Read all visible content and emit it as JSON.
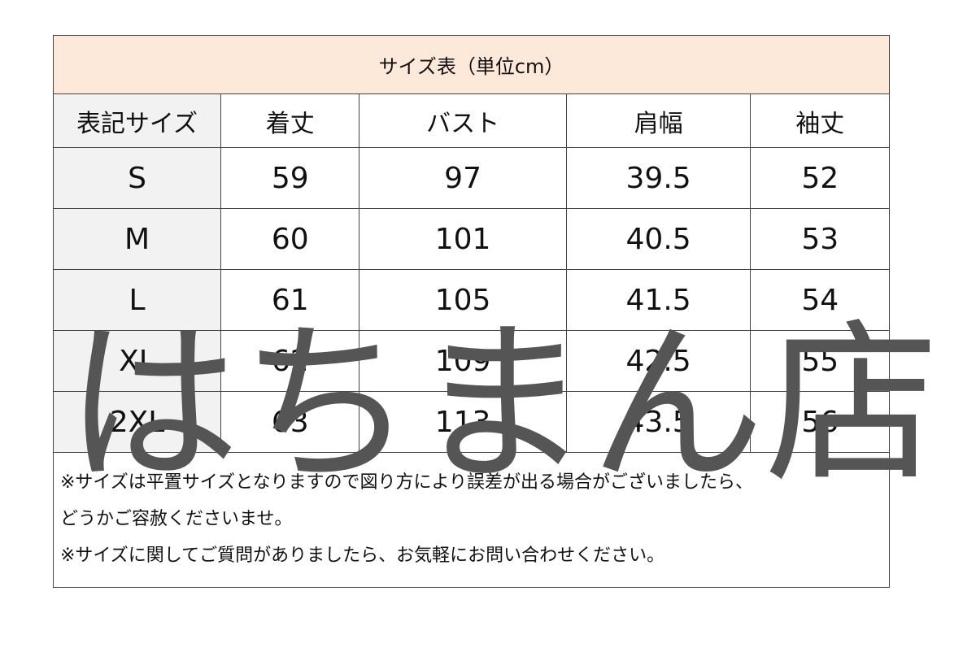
{
  "title": "サイズ表（単位cm）",
  "headers": [
    "表記サイズ",
    "着丈",
    "バスト",
    "肩幅",
    "袖丈"
  ],
  "rows": [
    [
      "S",
      "59",
      "97",
      "39.5",
      "52"
    ],
    [
      "M",
      "60",
      "101",
      "40.5",
      "53"
    ],
    [
      "L",
      "61",
      "105",
      "41.5",
      "54"
    ],
    [
      "XL",
      "62",
      "109",
      "42.5",
      "55"
    ],
    [
      "2XL",
      "63",
      "113",
      "43.5",
      "56"
    ]
  ],
  "notes": [
    "※サイズは平置サイズとなりますので図り方により誤差が出る場合がございましたら、",
    "どうかご容赦くださいませ。",
    "※サイズに関してご質問がありましたら、お気軽にお問い合わせください。"
  ],
  "watermark": "はちまん店",
  "colors": {
    "title_bg": "#fde9d9",
    "first_col_bg": "#f2f2f2",
    "watermark": "#555555"
  }
}
